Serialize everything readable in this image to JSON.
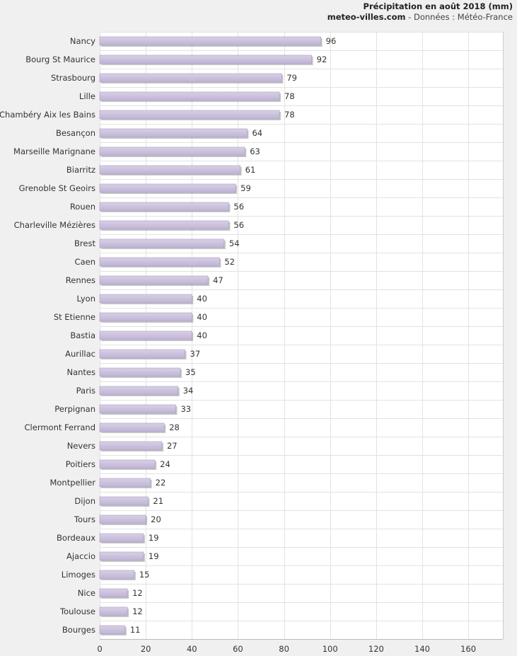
{
  "header": {
    "title": "Précipitation en août 2018 (mm)",
    "site": "meteo-villes.com",
    "source": " - Données : Météo-France"
  },
  "colors": {
    "bar": "#c9bfdb",
    "bar_border": "#a99cc2",
    "shadow": "#999999",
    "grid": "#e2e2e2",
    "plot_bg": "#ffffff",
    "page_bg": "#f0f0f0"
  },
  "chart_data": {
    "type": "bar",
    "orientation": "horizontal",
    "title": "Précipitation en août 2018 (mm)",
    "xlim": [
      0,
      175
    ],
    "xticks": [
      0,
      20,
      40,
      60,
      80,
      100,
      120,
      140,
      160
    ],
    "grid": true,
    "categories": [
      "Nancy",
      "Bourg St Maurice",
      "Strasbourg",
      "Lille",
      "Chambéry Aix les Bains",
      "Besançon",
      "Marseille Marignane",
      "Biarritz",
      "Grenoble St Geoirs",
      "Rouen",
      "Charleville Mézières",
      "Brest",
      "Caen",
      "Rennes",
      "Lyon",
      "St Etienne",
      "Bastia",
      "Aurillac",
      "Nantes",
      "Paris",
      "Perpignan",
      "Clermont Ferrand",
      "Nevers",
      "Poitiers",
      "Montpellier",
      "Dijon",
      "Tours",
      "Bordeaux",
      "Ajaccio",
      "Limoges",
      "Nice",
      "Toulouse",
      "Bourges"
    ],
    "values": [
      96,
      92,
      79,
      78,
      78,
      64,
      63,
      61,
      59,
      56,
      56,
      54,
      52,
      47,
      40,
      40,
      40,
      37,
      35,
      34,
      33,
      28,
      27,
      24,
      22,
      21,
      20,
      19,
      19,
      15,
      12,
      12,
      11
    ]
  }
}
